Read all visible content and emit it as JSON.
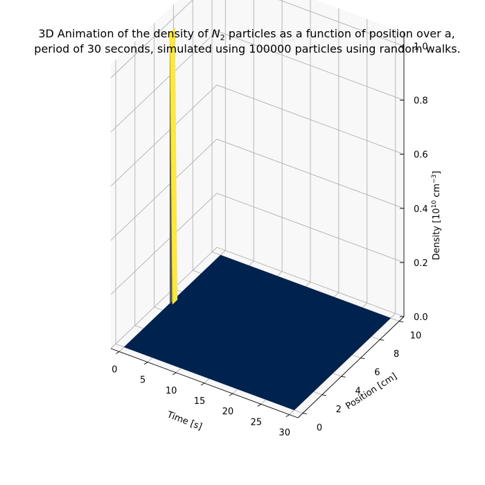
{
  "title": {
    "line1_pre": "3D Animation of the density of ",
    "line1_symbol": "N",
    "line1_sub": "2",
    "line1_post": " particles as a function of position over a,",
    "line2": "period of 30 seconds, simulated using 100000 particles using random walks."
  },
  "chart_data": {
    "type": "surface3d",
    "title": "3D Animation of the density of N2 particles as a function of position over a, period of 30 seconds, simulated using 100000 particles using random walks.",
    "xlabel": "Time [s]",
    "ylabel": "Position [cm]",
    "zlabel_pre": "Density [10",
    "zlabel_exp1": "10",
    "zlabel_mid": " cm",
    "zlabel_exp2": "−3",
    "zlabel_post": "]",
    "xlim": [
      -1.5,
      31.5
    ],
    "ylim": [
      -0.5,
      10.5
    ],
    "zlim": [
      0,
      1.05
    ],
    "x_ticks": [
      "0",
      "5",
      "10",
      "15",
      "20",
      "25",
      "30"
    ],
    "y_ticks": [
      "0",
      "2",
      "4",
      "6",
      "8",
      "10"
    ],
    "z_ticks": [
      "0.0",
      "0.2",
      "0.4",
      "0.6",
      "0.8",
      "1.0"
    ],
    "x_tick_values": [
      0,
      5,
      10,
      15,
      20,
      25,
      30
    ],
    "y_tick_values": [
      0,
      2,
      4,
      6,
      8,
      10
    ],
    "z_tick_values": [
      0,
      0.2,
      0.4,
      0.6,
      0.8,
      1.0
    ],
    "surface": {
      "time_range": [
        0,
        30
      ],
      "position_range": [
        0,
        10
      ],
      "base_density": 0
    },
    "peak": {
      "time": 0,
      "position_range": [
        4.75,
        5.25
      ],
      "density": 1.0
    },
    "colormap": "cividis",
    "low_color": "#00224e",
    "high_color": "#fee838",
    "edge_color": "#5a5d6e",
    "grid": true
  }
}
